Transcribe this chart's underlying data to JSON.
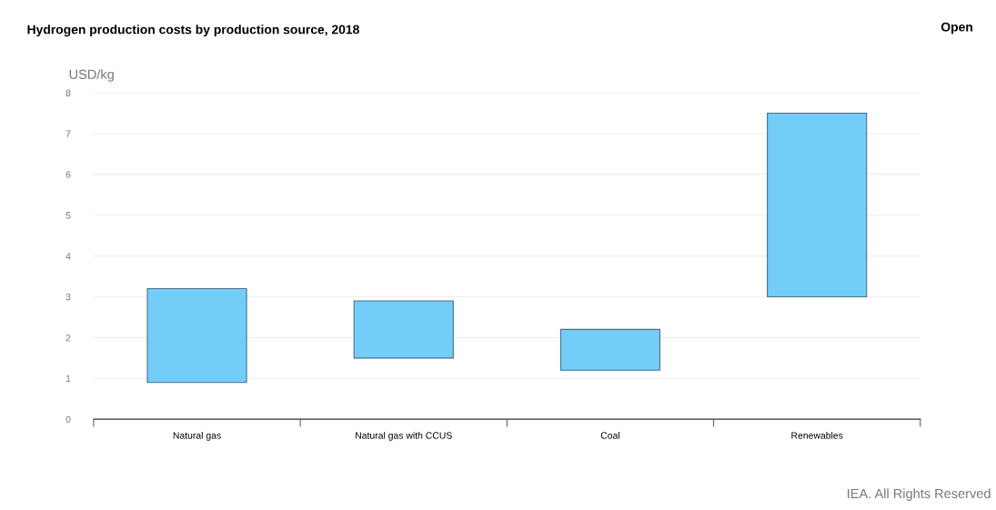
{
  "chart_data": {
    "type": "bar",
    "title": "Hydrogen production costs by production source, 2018",
    "ylabel": "USD/kg",
    "categories": [
      "Natural gas",
      "Natural gas with CCUS",
      "Coal",
      "Renewables"
    ],
    "base": [
      0.9,
      1.5,
      1.2,
      3.0
    ],
    "values": [
      2.3,
      1.4,
      1.0,
      4.5
    ],
    "color": "#73cdf9",
    "ylim": [
      0,
      8
    ],
    "yticks": [
      0,
      1,
      2,
      3,
      4,
      5,
      6,
      7,
      8
    ],
    "grid": "y",
    "legend": false,
    "annotations": [
      "Open",
      "IEA. All Rights Reserved"
    ]
  }
}
